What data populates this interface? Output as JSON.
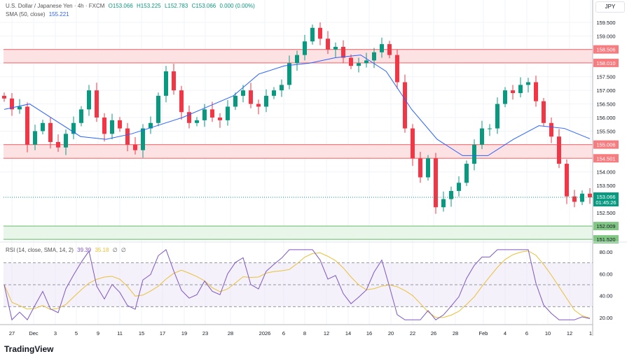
{
  "header": {
    "symbol": "U.S. Dollar / Japanese Yen · 4h · FXCM",
    "open": "O153.066",
    "high": "H153.225",
    "low": "L152.783",
    "close": "C153.066",
    "change": "0.000 (0.00%)"
  },
  "sma_legend": {
    "label": "SMA (50, close)",
    "value": "155.221"
  },
  "rsi_legend": {
    "label": "RSI (14, close, SMA, 14, 2)",
    "rsi": "39.39",
    "rsi_sma": "35.18",
    "extra1": "∅",
    "extra2": "∅"
  },
  "currency": "JPY",
  "brand": "TradingView",
  "colors": {
    "up": "#089981",
    "down": "#f23645",
    "sma": "#2962ff",
    "rsi": "#7e57c2",
    "rsi_sma": "#e8c13a",
    "resistance": "#f77c80",
    "support": "#81c784"
  },
  "chart_data": {
    "type": "candlestick",
    "ylim": [
      151.3,
      159.7
    ],
    "price_ticks": [
      "159.500",
      "159.000",
      "157.500",
      "157.000",
      "156.500",
      "156.000",
      "155.500",
      "154.000",
      "153.500",
      "152.500"
    ],
    "x_ticks": [
      "27",
      "Dec",
      "3",
      "5",
      "9",
      "11",
      "15",
      "17",
      "19",
      "23",
      "28",
      "2026",
      "6",
      "8",
      "12",
      "14",
      "16",
      "20",
      "22",
      "26",
      "28",
      "Feb",
      "4",
      "6",
      "10",
      "12",
      "1"
    ],
    "close": [
      156.7,
      156.3,
      156.4,
      155.0,
      155.5,
      155.8,
      155.1,
      154.9,
      155.4,
      155.8,
      156.3,
      157.0,
      156.0,
      155.4,
      155.9,
      155.6,
      155.0,
      154.8,
      155.6,
      155.8,
      156.8,
      157.7,
      157.0,
      156.2,
      155.8,
      155.9,
      156.3,
      156.0,
      155.9,
      156.4,
      156.8,
      157.0,
      156.5,
      156.4,
      156.8,
      157.0,
      157.2,
      158.0,
      158.3,
      158.8,
      159.3,
      158.9,
      158.5,
      158.6,
      158.2,
      157.9,
      158.0,
      158.1,
      158.4,
      158.7,
      158.3,
      157.3,
      155.6,
      154.5,
      153.8,
      154.5,
      152.7,
      153.0,
      153.3,
      153.6,
      154.3,
      155.0,
      155.6,
      155.6,
      156.5,
      157.0,
      156.9,
      157.2,
      157.3,
      156.6,
      155.8,
      155.3,
      154.3,
      153.1,
      152.9,
      153.2,
      153.066
    ],
    "sma": [
      156.3,
      156.5,
      155.9,
      155.3,
      155.2,
      155.4,
      155.7,
      156.0,
      156.4,
      156.8,
      157.6,
      157.9,
      158.0,
      158.2,
      158.3,
      157.7,
      156.3,
      155.2,
      154.6,
      154.6,
      155.2,
      155.7,
      155.6,
      155.221
    ],
    "zones": [
      {
        "kind": "resistance",
        "top": 158.506,
        "bottom": 158.01,
        "top_label": "158.506",
        "bottom_label": "158.010"
      },
      {
        "kind": "resistance",
        "top": 155.006,
        "bottom": 154.501,
        "top_label": "155.006",
        "bottom_label": "154.501"
      },
      {
        "kind": "support",
        "top": 152.009,
        "bottom": 151.52,
        "top_label": "152.009",
        "bottom_label": "151.520"
      }
    ],
    "last_price": {
      "value": 153.066,
      "label": "153.066",
      "countdown": "01:45:26"
    },
    "rsi": {
      "ticks": [
        "80.00",
        "60.00",
        "40.00",
        "20.00"
      ],
      "ylim": [
        15,
        85
      ],
      "upper": 70,
      "middle": 50,
      "lower": 30
    }
  }
}
